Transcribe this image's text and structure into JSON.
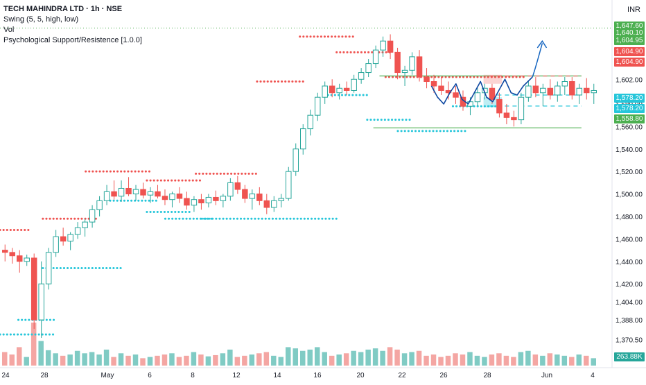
{
  "header": {
    "symbol_line": "TECH MAHINDRA LTD · 1h · NSE",
    "indicators": [
      "Swing (5, 5, high, low)",
      "Vol",
      "Psychological Support/Resistence [1.0.0]"
    ],
    "currency": "INR"
  },
  "colors": {
    "up": "#26a69a",
    "down": "#ef5350",
    "resistance": "#ef5350",
    "support": "#26c6da",
    "green_line": "#4caf50",
    "drawing": "#0d47a1",
    "vol_up": "#80cbc4",
    "vol_down": "#f4a6a3"
  },
  "price_tags": [
    {
      "label": "1,647.60",
      "value": 1647.6,
      "color": "#4caf50"
    },
    {
      "label": "1,640.10",
      "value": 1640.1,
      "color": "#4caf50"
    },
    {
      "label": "1,604.95",
      "value": 1604.95,
      "color": "#4caf50"
    },
    {
      "label": "1,604.90",
      "value": 1604.9,
      "color": "#ef5350"
    },
    {
      "label": "1,604.90",
      "value": 1604.9,
      "color": "#ef5350"
    },
    {
      "label": "1,578.20",
      "value": 1578.2,
      "color": "#26c6da"
    },
    {
      "label": "1,578.20",
      "value": 1578.2,
      "color": "#26c6da"
    },
    {
      "label": "1,558.80",
      "value": 1558.8,
      "color": "#4caf50"
    }
  ],
  "volume_tag": {
    "label": "263.88K",
    "color": "#26a69a"
  },
  "chart_data": {
    "type": "candlestick",
    "y_ticks": [
      "1,602.00",
      "1,580.00",
      "1,560.00",
      "1,540.00",
      "1,520.00",
      "1,500.00",
      "1,480.00",
      "1,460.00",
      "1,440.00",
      "1,420.00",
      "1,404.00",
      "1,388.00",
      "1,370.50"
    ],
    "y_tick_values": [
      1602,
      1580,
      1560,
      1540,
      1520,
      1500,
      1480,
      1460,
      1440,
      1420,
      1404,
      1388,
      1370.5
    ],
    "x_ticks": [
      "24",
      "28",
      "May",
      "6",
      "8",
      "12",
      "14",
      "16",
      "20",
      "22",
      "26",
      "28",
      "Jun",
      "4"
    ],
    "ylim": [
      1364,
      1654
    ],
    "candles": [
      [
        1450,
        1455,
        1440,
        1448
      ],
      [
        1448,
        1452,
        1438,
        1445
      ],
      [
        1445,
        1450,
        1430,
        1440
      ],
      [
        1440,
        1446,
        1436,
        1443
      ],
      [
        1443,
        1447,
        1380,
        1388
      ],
      [
        1388,
        1440,
        1372,
        1420
      ],
      [
        1420,
        1452,
        1415,
        1448
      ],
      [
        1448,
        1468,
        1444,
        1462
      ],
      [
        1462,
        1470,
        1454,
        1458
      ],
      [
        1458,
        1466,
        1450,
        1464
      ],
      [
        1464,
        1475,
        1460,
        1470
      ],
      [
        1470,
        1478,
        1462,
        1475
      ],
      [
        1475,
        1490,
        1470,
        1486
      ],
      [
        1486,
        1498,
        1480,
        1494
      ],
      [
        1494,
        1508,
        1490,
        1502
      ],
      [
        1502,
        1512,
        1495,
        1498
      ],
      [
        1498,
        1512,
        1493,
        1505
      ],
      [
        1505,
        1515,
        1498,
        1500
      ],
      [
        1500,
        1508,
        1494,
        1504
      ],
      [
        1504,
        1510,
        1496,
        1499
      ],
      [
        1499,
        1506,
        1492,
        1502
      ],
      [
        1502,
        1508,
        1496,
        1498
      ],
      [
        1498,
        1504,
        1490,
        1495
      ],
      [
        1495,
        1502,
        1488,
        1500
      ],
      [
        1500,
        1506,
        1492,
        1496
      ],
      [
        1496,
        1502,
        1486,
        1490
      ],
      [
        1490,
        1498,
        1484,
        1495
      ],
      [
        1495,
        1500,
        1486,
        1492
      ],
      [
        1492,
        1500,
        1488,
        1497
      ],
      [
        1497,
        1503,
        1490,
        1494
      ],
      [
        1494,
        1500,
        1488,
        1498
      ],
      [
        1498,
        1514,
        1494,
        1510
      ],
      [
        1510,
        1516,
        1500,
        1504
      ],
      [
        1504,
        1508,
        1492,
        1496
      ],
      [
        1496,
        1504,
        1486,
        1500
      ],
      [
        1500,
        1506,
        1490,
        1494
      ],
      [
        1494,
        1500,
        1482,
        1488
      ],
      [
        1488,
        1498,
        1484,
        1494
      ],
      [
        1494,
        1500,
        1488,
        1496
      ],
      [
        1496,
        1524,
        1494,
        1520
      ],
      [
        1520,
        1545,
        1516,
        1540
      ],
      [
        1540,
        1562,
        1535,
        1558
      ],
      [
        1558,
        1575,
        1552,
        1570
      ],
      [
        1570,
        1590,
        1565,
        1586
      ],
      [
        1586,
        1600,
        1580,
        1596
      ],
      [
        1596,
        1602,
        1586,
        1590
      ],
      [
        1590,
        1598,
        1584,
        1594
      ],
      [
        1594,
        1600,
        1588,
        1592
      ],
      [
        1592,
        1606,
        1590,
        1602
      ],
      [
        1602,
        1612,
        1598,
        1608
      ],
      [
        1608,
        1620,
        1604,
        1616
      ],
      [
        1616,
        1632,
        1612,
        1628
      ],
      [
        1628,
        1640,
        1622,
        1636
      ],
      [
        1636,
        1642,
        1620,
        1626
      ],
      [
        1626,
        1630,
        1602,
        1608
      ],
      [
        1608,
        1614,
        1596,
        1610
      ],
      [
        1610,
        1626,
        1606,
        1622
      ],
      [
        1622,
        1628,
        1600,
        1604
      ],
      [
        1604,
        1612,
        1594,
        1600
      ],
      [
        1600,
        1606,
        1590,
        1596
      ],
      [
        1596,
        1604,
        1588,
        1592
      ],
      [
        1592,
        1600,
        1584,
        1590
      ],
      [
        1590,
        1596,
        1580,
        1586
      ],
      [
        1586,
        1592,
        1574,
        1578
      ],
      [
        1578,
        1586,
        1570,
        1582
      ],
      [
        1582,
        1594,
        1578,
        1590
      ],
      [
        1590,
        1598,
        1584,
        1594
      ],
      [
        1594,
        1598,
        1580,
        1584
      ],
      [
        1584,
        1590,
        1568,
        1572
      ],
      [
        1572,
        1580,
        1562,
        1568
      ],
      [
        1568,
        1574,
        1560,
        1566
      ],
      [
        1566,
        1590,
        1562,
        1586
      ],
      [
        1586,
        1600,
        1582,
        1596
      ],
      [
        1596,
        1604,
        1586,
        1590
      ],
      [
        1590,
        1598,
        1578,
        1594
      ],
      [
        1594,
        1602,
        1584,
        1588
      ],
      [
        1588,
        1600,
        1582,
        1596
      ],
      [
        1596,
        1604,
        1588,
        1600
      ],
      [
        1600,
        1604,
        1584,
        1588
      ],
      [
        1588,
        1598,
        1580,
        1594
      ],
      [
        1594,
        1603,
        1584,
        1590
      ],
      [
        1590,
        1598,
        1580,
        1592
      ]
    ],
    "volume": [
      22,
      18,
      30,
      14,
      70,
      40,
      25,
      20,
      16,
      18,
      24,
      20,
      22,
      18,
      26,
      14,
      20,
      16,
      18,
      12,
      14,
      16,
      18,
      20,
      14,
      16,
      22,
      18,
      15,
      17,
      20,
      26,
      14,
      16,
      18,
      20,
      22,
      16,
      14,
      30,
      28,
      24,
      26,
      30,
      22,
      16,
      18,
      20,
      24,
      22,
      26,
      28,
      24,
      30,
      26,
      20,
      22,
      24,
      16,
      18,
      14,
      16,
      20,
      18,
      22,
      16,
      14,
      18,
      20,
      16,
      14,
      22,
      24,
      18,
      16,
      20,
      18,
      16,
      14,
      18,
      16,
      12
    ],
    "resistance_levels": [
      {
        "value": 1468,
        "x0": 0.0,
        "x1": 0.05
      },
      {
        "value": 1478,
        "x0": 0.07,
        "x1": 0.16
      },
      {
        "value": 1520,
        "x0": 0.14,
        "x1": 0.245
      },
      {
        "value": 1512,
        "x0": 0.24,
        "x1": 0.33
      },
      {
        "value": 1518,
        "x0": 0.32,
        "x1": 0.42
      },
      {
        "value": 1600,
        "x0": 0.42,
        "x1": 0.5
      },
      {
        "value": 1640,
        "x0": 0.49,
        "x1": 0.58
      },
      {
        "value": 1626,
        "x0": 0.55,
        "x1": 0.64
      },
      {
        "value": 1604,
        "x0": 0.63,
        "x1": 0.86
      }
    ],
    "support_levels": [
      {
        "value": 1434,
        "x0": 0.07,
        "x1": 0.2
      },
      {
        "value": 1494,
        "x0": 0.18,
        "x1": 0.26
      },
      {
        "value": 1484,
        "x0": 0.24,
        "x1": 0.31
      },
      {
        "value": 1478,
        "x0": 0.27,
        "x1": 0.35
      },
      {
        "value": 1478,
        "x0": 0.33,
        "x1": 0.55
      },
      {
        "value": 1588,
        "x0": 0.53,
        "x1": 0.6
      },
      {
        "value": 1566,
        "x0": 0.6,
        "x1": 0.67
      },
      {
        "value": 1556,
        "x0": 0.65,
        "x1": 0.76
      },
      {
        "value": 1578,
        "x0": 0.74,
        "x1": 0.82
      },
      {
        "value": 1375,
        "x0": 0.0,
        "x1": 0.09
      },
      {
        "value": 1388,
        "x0": 0.03,
        "x1": 0.09
      }
    ],
    "green_lines": [
      {
        "value": 1604.95,
        "x0": 0.62,
        "x1": 0.95
      },
      {
        "value": 1558.8,
        "x0": 0.61,
        "x1": 0.95
      }
    ],
    "dashed_lines": [
      {
        "value": 1604.9,
        "x0": 0.8,
        "x1": 0.95,
        "color": "#ef5350"
      },
      {
        "value": 1588,
        "x0": 0.8,
        "x1": 0.95,
        "color": "#26c6da"
      },
      {
        "value": 1578.2,
        "x0": 0.8,
        "x1": 0.95,
        "color": "#26c6da"
      }
    ]
  }
}
